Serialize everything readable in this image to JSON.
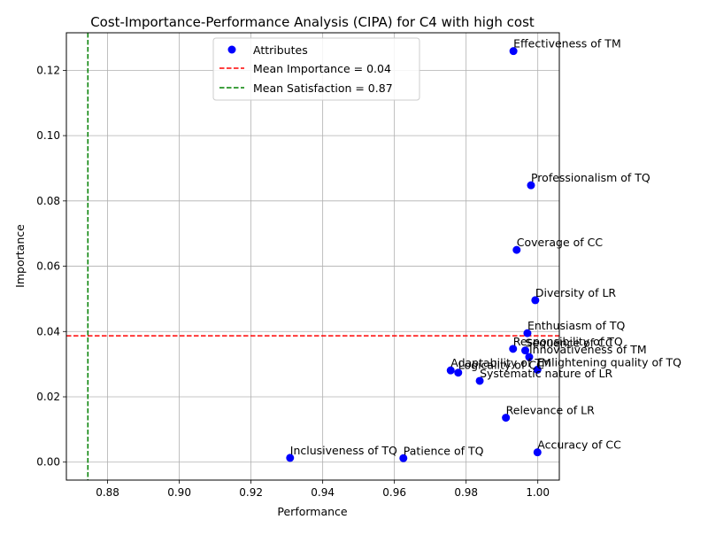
{
  "chart_data": {
    "type": "scatter",
    "title": "Cost-Importance-Performance Analysis (CIPA) for C4 with high cost",
    "xlabel": "Performance",
    "ylabel": "Importance",
    "xlim": [
      0.8685,
      1.006
    ],
    "ylim": [
      -0.0055,
      0.1315
    ],
    "xticks": [
      "0.88",
      "0.90",
      "0.92",
      "0.94",
      "0.96",
      "0.98",
      "1.00"
    ],
    "xtick_values": [
      0.88,
      0.9,
      0.92,
      0.94,
      0.96,
      0.98,
      1.0
    ],
    "yticks": [
      "0.00",
      "0.02",
      "0.04",
      "0.06",
      "0.08",
      "0.10",
      "0.12"
    ],
    "ytick_values": [
      0.0,
      0.02,
      0.04,
      0.06,
      0.08,
      0.1,
      0.12
    ],
    "grid": true,
    "legend_position": "upper-center",
    "series_name": "Attributes",
    "point_color": "#0000ff",
    "mean_importance": {
      "value": 0.0387,
      "label": "Mean Importance = 0.04",
      "color": "#ff0000"
    },
    "mean_satisfaction": {
      "value": 0.8745,
      "label": "Mean Satisfaction = 0.87",
      "color": "#008000"
    },
    "points": [
      {
        "label": "Effectiveness of TM",
        "x": 0.9932,
        "y": 0.1259
      },
      {
        "label": "Professionalism of TQ",
        "x": 0.9981,
        "y": 0.0848
      },
      {
        "label": "Coverage of CC",
        "x": 0.9941,
        "y": 0.065
      },
      {
        "label": "Diversity of LR",
        "x": 0.9993,
        "y": 0.0496
      },
      {
        "label": "Enthusiasm of TQ",
        "x": 0.9971,
        "y": 0.0395
      },
      {
        "label": "Responsibility of TQ",
        "x": 0.9931,
        "y": 0.0347
      },
      {
        "label": "Sequence of CC",
        "x": 0.9965,
        "y": 0.0342
      },
      {
        "label": "Innovativeness of TM",
        "x": 0.9976,
        "y": 0.0322
      },
      {
        "label": "Enlightening quality of TQ",
        "x": 0.9999,
        "y": 0.0283
      },
      {
        "label": "Adaptability of TM",
        "x": 0.9757,
        "y": 0.0281
      },
      {
        "label": "Logicality of CC",
        "x": 0.9778,
        "y": 0.0274
      },
      {
        "label": "Systematic nature of LR",
        "x": 0.9838,
        "y": 0.0249
      },
      {
        "label": "Relevance of LR",
        "x": 0.9911,
        "y": 0.0136
      },
      {
        "label": "Accuracy of CC",
        "x": 0.9999,
        "y": 0.003
      },
      {
        "label": "Inclusiveness of TQ",
        "x": 0.9309,
        "y": 0.0013
      },
      {
        "label": "Patience of TQ",
        "x": 0.9625,
        "y": 0.0012
      }
    ]
  }
}
